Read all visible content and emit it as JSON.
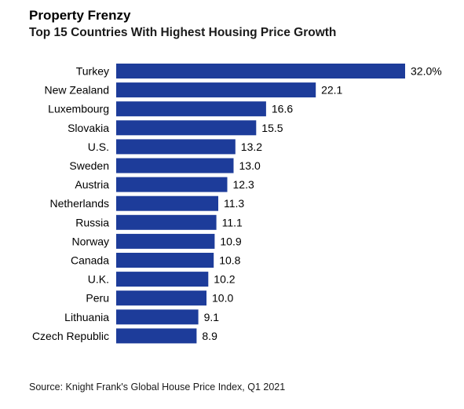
{
  "header": {
    "title": "Property Frenzy",
    "subtitle": "Top 15 Countries With Highest Housing Price Growth"
  },
  "footer": {
    "source": "Source: Knight Frank's Global House Price Index, Q1 2021"
  },
  "colors": {
    "bar": "#1d3c9a",
    "text": "#000000"
  },
  "chart_data": {
    "type": "bar",
    "orientation": "horizontal",
    "title": "Property Frenzy",
    "subtitle": "Top 15 Countries With Highest Housing Price Growth",
    "categories": [
      "Turkey",
      "New Zealand",
      "Luxembourg",
      "Slovakia",
      "U.S.",
      "Sweden",
      "Austria",
      "Netherlands",
      "Russia",
      "Norway",
      "Canada",
      "U.K.",
      "Peru",
      "Lithuania",
      "Czech Republic"
    ],
    "values": [
      32.0,
      22.1,
      16.6,
      15.5,
      13.2,
      13.0,
      12.3,
      11.3,
      11.1,
      10.9,
      10.8,
      10.2,
      10.0,
      9.1,
      8.9
    ],
    "value_labels": [
      "32.0%",
      "22.1",
      "16.6",
      "15.5",
      "13.2",
      "13.0",
      "12.3",
      "11.3",
      "11.1",
      "10.9",
      "10.8",
      "10.2",
      "10.0",
      "9.1",
      "8.9"
    ],
    "xlim": [
      0,
      32.0
    ],
    "grid": false,
    "legend": "none"
  }
}
